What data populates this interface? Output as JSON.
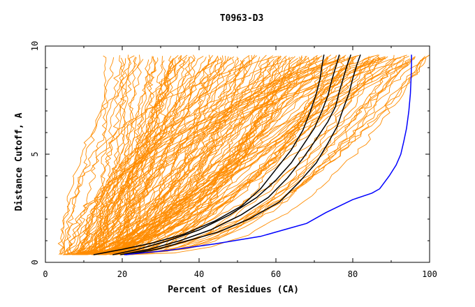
{
  "chart_data": {
    "type": "line",
    "title": "T0963-D3",
    "xlabel": "Percent of Residues (CA)",
    "ylabel": "Distance Cutoff, A",
    "xlim": [
      0,
      100
    ],
    "ylim": [
      0,
      10
    ],
    "x_ticks": [
      0,
      20,
      40,
      60,
      80,
      100
    ],
    "y_ticks": [
      0,
      5,
      10
    ],
    "grid": false,
    "legend": "none",
    "colors": {
      "models": "#ff8c00",
      "highlight_black": "#000000",
      "highlight_blue": "#0000ff"
    },
    "series": [
      {
        "group": "black",
        "x": [
          12.5,
          20,
          28,
          36,
          44,
          51,
          56,
          60,
          64,
          67,
          69,
          70.5,
          71.5,
          72,
          72.5
        ],
        "y": [
          0.35,
          0.6,
          0.9,
          1.3,
          1.9,
          2.6,
          3.4,
          4.3,
          5.2,
          6.1,
          7.0,
          7.8,
          8.5,
          9.1,
          9.6
        ]
      },
      {
        "group": "black",
        "x": [
          17.5,
          24,
          32,
          40,
          48,
          55,
          60,
          64,
          67,
          70,
          72,
          73.5,
          74.5,
          75.5,
          76.5
        ],
        "y": [
          0.35,
          0.6,
          1.0,
          1.5,
          2.2,
          3.0,
          3.8,
          4.6,
          5.4,
          6.2,
          7.0,
          7.7,
          8.4,
          9.0,
          9.6
        ]
      },
      {
        "group": "black",
        "x": [
          19.5,
          27,
          35,
          43,
          51,
          58,
          63,
          67,
          70.5,
          73.5,
          75.5,
          76.5,
          77.5,
          78.5,
          79.5
        ],
        "y": [
          0.35,
          0.6,
          1.0,
          1.5,
          2.2,
          3.0,
          3.9,
          4.8,
          5.7,
          6.5,
          7.2,
          7.9,
          8.5,
          9.1,
          9.6
        ]
      },
      {
        "group": "black",
        "x": [
          21,
          29,
          37,
          45,
          53,
          61,
          66,
          70.5,
          73.5,
          76,
          77.5,
          79,
          80,
          81,
          82
        ],
        "y": [
          0.35,
          0.6,
          1.0,
          1.4,
          2.0,
          2.8,
          3.7,
          4.6,
          5.5,
          6.3,
          7.1,
          7.8,
          8.5,
          9.1,
          9.6
        ]
      },
      {
        "group": "blue",
        "x": [
          20.5,
          32,
          44,
          56,
          64,
          68,
          73,
          80,
          85,
          87,
          89.5,
          91.3,
          92.5,
          93.3,
          94,
          94.6,
          95,
          95.2,
          95.3,
          95.3
        ],
        "y": [
          0.35,
          0.55,
          0.85,
          1.2,
          1.6,
          1.8,
          2.3,
          2.9,
          3.2,
          3.4,
          4.0,
          4.5,
          5.0,
          5.6,
          6.2,
          7.0,
          7.8,
          8.6,
          9.2,
          9.6
        ]
      }
    ]
  }
}
